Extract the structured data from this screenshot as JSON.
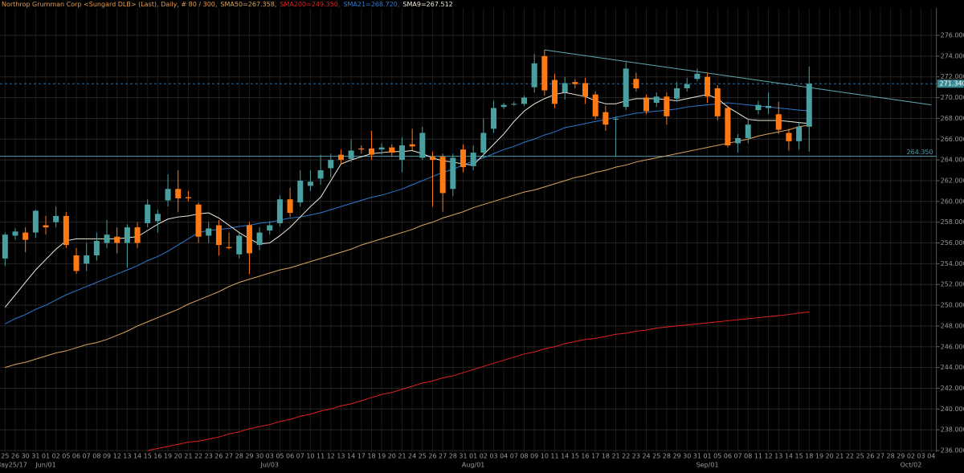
{
  "chart_data": {
    "type": "candlestick",
    "title": "Northrop Grumman Corp <Sungard DLB> (Last), Daily, # 80 / 300,",
    "categories": [
      "25",
      "26",
      "30",
      "31",
      "01",
      "02",
      "05",
      "06",
      "07",
      "08",
      "09",
      "12",
      "13",
      "14",
      "15",
      "16",
      "19",
      "20",
      "21",
      "22",
      "23",
      "26",
      "27",
      "28",
      "29",
      "30",
      "03",
      "05",
      "06",
      "07",
      "10",
      "11",
      "12",
      "13",
      "14",
      "17",
      "18",
      "19",
      "20",
      "21",
      "24",
      "25",
      "26",
      "27",
      "28",
      "31",
      "01",
      "02",
      "03",
      "04",
      "07",
      "08",
      "09",
      "10",
      "11",
      "14",
      "15",
      "16",
      "17",
      "18",
      "21",
      "22",
      "23",
      "24",
      "25",
      "28",
      "29",
      "30",
      "31",
      "01",
      "05",
      "06",
      "07",
      "08",
      "11",
      "12",
      "13",
      "14",
      "15",
      "18",
      "19",
      "20",
      "21",
      "22",
      "25",
      "26",
      "27",
      "28",
      "29",
      "02",
      "03",
      "04"
    ],
    "x_major_labels": [
      {
        "value": 0,
        "label": "May25/17"
      },
      {
        "value": 4,
        "label": "Jun/01"
      },
      {
        "value": 26,
        "label": "Jul/03"
      },
      {
        "value": 46,
        "label": "Aug/01"
      },
      {
        "value": 69,
        "label": "Sep/01"
      },
      {
        "value": 89,
        "label": "Oct/02"
      }
    ],
    "up_color": "#4a9fa0",
    "down_color": "#ff7a12",
    "open": [
      254.5,
      256.7,
      257.0,
      257.0,
      257.7,
      258.0,
      258.6,
      254.8,
      254.0,
      254.8,
      256.0,
      256.6,
      256.0,
      257.5,
      257.9,
      258.1,
      260.1,
      261.2,
      260.4,
      259.7,
      256.7,
      257.7,
      255.6,
      254.9,
      257.7,
      255.8,
      257.2,
      257.9,
      260.2,
      259.9,
      261.5,
      262.2,
      263.2,
      264.5,
      264.1,
      265.1,
      265.1,
      265.0,
      265.2,
      264.0,
      265.5,
      264.2,
      264.3,
      264.3,
      261.2,
      265.0,
      263.4,
      264.7,
      267.0,
      269.1,
      269.35,
      269.4,
      271.0,
      274.0,
      271.7,
      270.5,
      271.5,
      271.4,
      270.3,
      268.6,
      267.9,
      269.1,
      271.8,
      270.0,
      269.5,
      270.1,
      269.9,
      270.9,
      271.8,
      272.0,
      270.9,
      269.0,
      265.6,
      266.1,
      268.8,
      269.0,
      268.4,
      266.6,
      265.8,
      267.2,
      null,
      null,
      null,
      null,
      null,
      null,
      null,
      null,
      null,
      null,
      null,
      null
    ],
    "high": [
      257.0,
      257.4,
      257.5,
      259.2,
      258.6,
      259.5,
      259.0,
      255.5,
      256.0,
      257.0,
      258.2,
      257.5,
      257.8,
      258.0,
      260.2,
      259.2,
      262.6,
      263.0,
      261.0,
      259.9,
      258.0,
      258.2,
      257.0,
      257.0,
      258.0,
      257.5,
      258.1,
      260.6,
      261.3,
      263.0,
      263.0,
      264.5,
      264.6,
      265.0,
      266.0,
      265.4,
      266.8,
      265.6,
      265.5,
      266.2,
      267.0,
      267.2,
      264.8,
      264.6,
      264.6,
      265.5,
      265.4,
      268.0,
      269.7,
      269.5,
      269.6,
      270.2,
      274.2,
      274.6,
      272.3,
      272.0,
      271.8,
      271.9,
      270.6,
      269.2,
      268.2,
      273.4,
      272.4,
      270.3,
      270.5,
      270.5,
      271.5,
      271.9,
      272.8,
      272.4,
      271.2,
      269.2,
      266.5,
      268.0,
      269.7,
      270.5,
      269.6,
      267.0,
      267.6,
      273.0,
      null,
      null,
      null,
      null,
      null,
      null,
      null,
      null,
      null,
      null,
      null,
      null
    ],
    "low": [
      253.8,
      256.3,
      255.1,
      256.5,
      256.8,
      257.5,
      255.5,
      253.0,
      253.3,
      254.3,
      255.5,
      255.0,
      253.6,
      255.5,
      257.5,
      257.0,
      259.5,
      259.0,
      260.0,
      256.0,
      256.0,
      254.8,
      255.4,
      254.5,
      253.0,
      255.3,
      256.8,
      257.6,
      258.5,
      259.5,
      261.0,
      261.6,
      262.3,
      263.6,
      263.8,
      264.6,
      264.0,
      264.5,
      264.3,
      262.8,
      264.9,
      264.0,
      259.5,
      259.0,
      260.5,
      262.8,
      263.0,
      264.2,
      266.6,
      268.9,
      269.2,
      269.2,
      270.5,
      270.2,
      269.0,
      269.8,
      270.9,
      269.4,
      267.9,
      266.8,
      264.4,
      268.8,
      270.6,
      268.4,
      269.1,
      267.4,
      269.6,
      270.6,
      271.6,
      269.5,
      267.8,
      265.2,
      264.7,
      265.6,
      268.4,
      268.4,
      266.5,
      264.9,
      265.0,
      264.8,
      null,
      null,
      null,
      null,
      null,
      null,
      null,
      null,
      null,
      null,
      null,
      null
    ],
    "close": [
      256.8,
      257.1,
      256.3,
      259.1,
      257.5,
      258.6,
      255.8,
      253.3,
      254.8,
      256.2,
      256.8,
      256.0,
      257.5,
      256.0,
      259.7,
      258.8,
      261.2,
      260.3,
      260.3,
      256.6,
      257.4,
      255.8,
      255.5,
      256.7,
      255.0,
      257.0,
      257.7,
      260.2,
      258.9,
      262.0,
      261.9,
      263.0,
      264.0,
      264.0,
      264.9,
      265.0,
      264.5,
      265.2,
      264.7,
      265.4,
      265.3,
      266.6,
      264.0,
      260.8,
      264.2,
      263.3,
      264.7,
      266.6,
      269.0,
      269.3,
      269.4,
      270.0,
      273.3,
      270.7,
      269.4,
      271.4,
      271.3,
      270.1,
      268.2,
      267.4,
      267.95,
      272.8,
      270.9,
      268.7,
      270.1,
      268.2,
      270.9,
      271.3,
      272.3,
      270.1,
      268.2,
      265.4,
      266.1,
      267.4,
      269.3,
      269.2,
      266.9,
      265.8,
      267.2,
      271.34,
      null,
      null,
      null,
      null,
      null,
      null,
      null,
      null,
      null,
      null,
      null,
      null
    ],
    "series": [
      {
        "name": "SMA50=267.358,",
        "color": "#d9a35c",
        "values": [
          244.0,
          244.3,
          244.5,
          244.8,
          245.1,
          245.4,
          245.6,
          245.9,
          246.2,
          246.4,
          246.7,
          247.1,
          247.5,
          248.0,
          248.4,
          248.8,
          249.2,
          249.6,
          250.1,
          250.5,
          250.9,
          251.3,
          251.8,
          252.2,
          252.5,
          252.8,
          253.1,
          253.4,
          253.6,
          253.9,
          254.2,
          254.5,
          254.8,
          255.1,
          255.4,
          255.8,
          256.1,
          256.4,
          256.7,
          257.0,
          257.3,
          257.7,
          258.0,
          258.4,
          258.7,
          259.0,
          259.4,
          259.7,
          260.0,
          260.3,
          260.6,
          260.9,
          261.1,
          261.4,
          261.7,
          262.0,
          262.3,
          262.5,
          262.8,
          263.0,
          263.3,
          263.5,
          263.8,
          264.0,
          264.2,
          264.4,
          264.6,
          264.8,
          265.0,
          265.2,
          265.4,
          265.6,
          265.8,
          266.0,
          266.3,
          266.5,
          266.7,
          266.9,
          267.2,
          267.358,
          null,
          null,
          null,
          null,
          null,
          null,
          null,
          null,
          null,
          null,
          null,
          null
        ]
      },
      {
        "name": "SMA200=249.350,",
        "color": "#e02020",
        "values": [
          null,
          null,
          null,
          null,
          null,
          null,
          null,
          null,
          null,
          null,
          null,
          null,
          null,
          null,
          236.0,
          236.2,
          236.4,
          236.6,
          236.8,
          236.9,
          237.1,
          237.3,
          237.6,
          237.8,
          238.1,
          238.3,
          238.5,
          238.8,
          239.0,
          239.3,
          239.5,
          239.8,
          240.0,
          240.3,
          240.5,
          240.8,
          241.1,
          241.4,
          241.6,
          241.9,
          242.2,
          242.5,
          242.7,
          243.0,
          243.2,
          243.5,
          243.8,
          244.1,
          244.4,
          244.7,
          245.0,
          245.3,
          245.5,
          245.8,
          246.0,
          246.3,
          246.5,
          246.7,
          246.8,
          247.0,
          247.2,
          247.3,
          247.5,
          247.6,
          247.8,
          247.9,
          248.0,
          248.1,
          248.2,
          248.3,
          248.4,
          248.5,
          248.6,
          248.7,
          248.8,
          248.9,
          249.0,
          249.1,
          249.25,
          249.35,
          null,
          null,
          null,
          null,
          null,
          null,
          null,
          null,
          null,
          null,
          null,
          null
        ]
      },
      {
        "name": "SMA21=268.720,",
        "color": "#2f78d0",
        "values": [
          248.2,
          248.7,
          249.1,
          249.6,
          250.0,
          250.5,
          251.0,
          251.4,
          251.8,
          252.2,
          252.6,
          253.0,
          253.4,
          253.8,
          254.3,
          254.7,
          255.2,
          255.8,
          256.4,
          257.0,
          257.2,
          257.3,
          257.4,
          257.6,
          257.7,
          257.9,
          258.0,
          258.2,
          258.4,
          258.5,
          258.7,
          258.9,
          259.2,
          259.5,
          259.8,
          260.1,
          260.4,
          260.6,
          260.9,
          261.2,
          261.6,
          262.0,
          262.4,
          262.8,
          263.1,
          263.5,
          263.9,
          264.2,
          264.6,
          265.0,
          265.3,
          265.7,
          266.0,
          266.4,
          266.7,
          267.1,
          267.3,
          267.5,
          267.7,
          267.9,
          268.1,
          268.3,
          268.5,
          268.6,
          268.7,
          268.8,
          268.9,
          269.1,
          269.2,
          269.3,
          269.4,
          269.5,
          269.4,
          269.3,
          269.2,
          269.1,
          269.0,
          268.9,
          268.8,
          268.72,
          null,
          null,
          null,
          null,
          null,
          null,
          null,
          null,
          null,
          null,
          null,
          null
        ]
      },
      {
        "name": "SMA9=267.512",
        "color": "#f0ead8",
        "values": [
          249.8,
          251.0,
          252.2,
          253.4,
          254.4,
          255.4,
          256.2,
          256.4,
          256.4,
          256.4,
          256.4,
          256.4,
          256.5,
          256.6,
          257.2,
          257.8,
          258.3,
          258.5,
          258.6,
          258.8,
          258.9,
          258.4,
          257.7,
          257.0,
          256.4,
          255.9,
          256.0,
          256.7,
          257.5,
          258.5,
          259.5,
          260.4,
          262.0,
          263.6,
          264.0,
          264.3,
          264.6,
          264.7,
          264.8,
          264.8,
          264.9,
          264.6,
          264.2,
          263.9,
          263.8,
          263.6,
          263.5,
          264.5,
          265.5,
          266.5,
          267.7,
          268.7,
          269.4,
          269.9,
          270.3,
          270.5,
          270.3,
          270.1,
          269.7,
          269.4,
          269.4,
          269.7,
          269.9,
          269.9,
          269.9,
          269.8,
          269.7,
          269.9,
          270.1,
          270.3,
          269.9,
          269.1,
          268.5,
          267.9,
          267.8,
          267.8,
          267.8,
          267.7,
          267.6,
          267.512,
          null,
          null,
          null,
          null,
          null,
          null,
          null,
          null,
          null,
          null,
          null,
          null
        ]
      }
    ],
    "trendline": {
      "x": [
        53,
        91
      ],
      "values": [
        274.6,
        269.3
      ],
      "color": "#5fa8b4"
    },
    "support": {
      "value": 264.35,
      "label": "264.350",
      "color": "#4d9aa8"
    },
    "last_price": {
      "value": 271.34,
      "label": "271.340",
      "color": "#3a8a94"
    },
    "ylim": [
      236,
      278.5
    ],
    "yticks": [
      {
        "value": 236,
        "label": "236.000"
      },
      {
        "value": 238,
        "label": "238.000"
      },
      {
        "value": 240,
        "label": "240.000"
      },
      {
        "value": 242,
        "label": "242.000"
      },
      {
        "value": 244,
        "label": "244.000"
      },
      {
        "value": 246,
        "label": "246.000"
      },
      {
        "value": 248,
        "label": "248.000"
      },
      {
        "value": 250,
        "label": "250.000"
      },
      {
        "value": 252,
        "label": "252.000"
      },
      {
        "value": 254,
        "label": "254.000"
      },
      {
        "value": 256,
        "label": "256.000"
      },
      {
        "value": 258,
        "label": "258.000"
      },
      {
        "value": 260,
        "label": "260.000"
      },
      {
        "value": 262,
        "label": "262.000"
      },
      {
        "value": 264,
        "label": "264.000"
      },
      {
        "value": 266,
        "label": "266.000"
      },
      {
        "value": 268,
        "label": "268.000"
      },
      {
        "value": 270,
        "label": "270.000"
      },
      {
        "value": 272,
        "label": "272.000"
      },
      {
        "value": 274,
        "label": "274.000"
      },
      {
        "value": 276,
        "label": "276.000"
      }
    ],
    "grid": true
  }
}
